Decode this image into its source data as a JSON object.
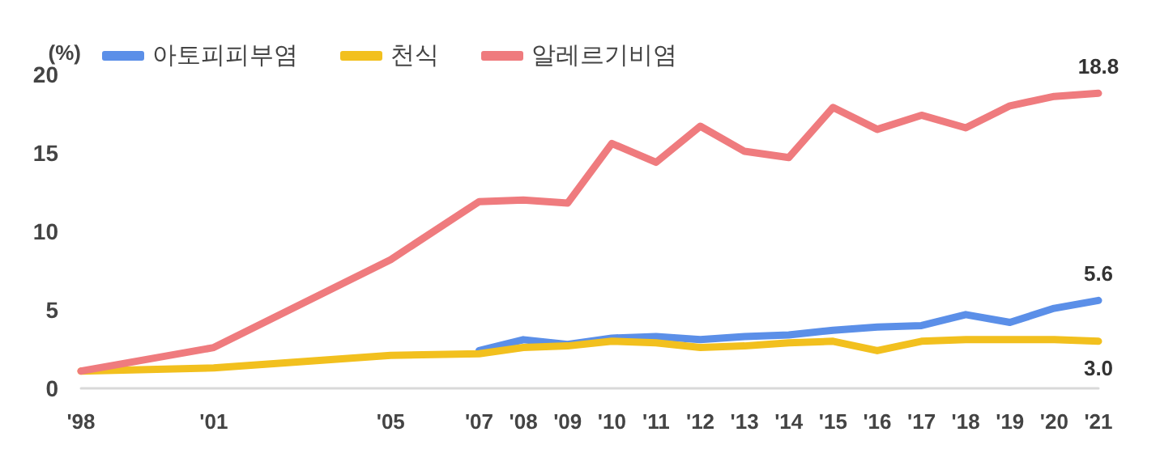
{
  "chart_data": {
    "type": "line",
    "ylabel": "(%)",
    "x": [
      1998,
      2001,
      2005,
      2007,
      2008,
      2009,
      2010,
      2011,
      2012,
      2013,
      2014,
      2015,
      2016,
      2017,
      2018,
      2019,
      2020,
      2021
    ],
    "xlim": [
      1998,
      2021
    ],
    "xticks": [
      {
        "value": 1998,
        "label": "'98"
      },
      {
        "value": 2001,
        "label": "'01"
      },
      {
        "value": 2005,
        "label": "'05"
      },
      {
        "value": 2007,
        "label": "'07"
      },
      {
        "value": 2008,
        "label": "'08"
      },
      {
        "value": 2009,
        "label": "'09"
      },
      {
        "value": 2010,
        "label": "'10"
      },
      {
        "value": 2011,
        "label": "'11"
      },
      {
        "value": 2012,
        "label": "'12"
      },
      {
        "value": 2013,
        "label": "'13"
      },
      {
        "value": 2014,
        "label": "'14"
      },
      {
        "value": 2015,
        "label": "'15"
      },
      {
        "value": 2016,
        "label": "'16"
      },
      {
        "value": 2017,
        "label": "'17"
      },
      {
        "value": 2018,
        "label": "'18"
      },
      {
        "value": 2019,
        "label": "'19"
      },
      {
        "value": 2020,
        "label": "'20"
      },
      {
        "value": 2021,
        "label": "'21"
      }
    ],
    "ylim": [
      0,
      20
    ],
    "yticks": [
      0,
      5,
      10,
      15,
      20
    ],
    "grid": false,
    "legend": "top left",
    "marker": "none",
    "line_style": "solid",
    "series": [
      {
        "name": "아토피피부염",
        "color": "#5b8fe8",
        "values": [
          null,
          null,
          null,
          2.4,
          3.1,
          2.8,
          3.2,
          3.3,
          3.1,
          3.3,
          3.4,
          3.7,
          3.9,
          4.0,
          4.7,
          4.2,
          5.1,
          5.6
        ],
        "value_labels": [
          null,
          null,
          null,
          null,
          null,
          null,
          null,
          null,
          null,
          null,
          null,
          null,
          null,
          null,
          null,
          null,
          null,
          "5.6"
        ]
      },
      {
        "name": "천식",
        "color": "#f2c01e",
        "values": [
          1.1,
          1.3,
          2.1,
          2.2,
          2.6,
          2.7,
          3.0,
          2.9,
          2.6,
          2.7,
          2.9,
          3.0,
          2.4,
          3.0,
          3.1,
          3.1,
          3.1,
          3.0
        ],
        "value_labels": [
          null,
          null,
          null,
          null,
          null,
          null,
          null,
          null,
          null,
          null,
          null,
          null,
          null,
          null,
          null,
          null,
          null,
          "3.0"
        ]
      },
      {
        "name": "알레르기비염",
        "color": "#ef7b7e",
        "values": [
          1.1,
          2.6,
          8.2,
          11.9,
          12.0,
          11.8,
          15.6,
          14.4,
          16.7,
          15.1,
          14.7,
          17.9,
          16.5,
          17.4,
          16.6,
          18.0,
          18.6,
          18.8
        ],
        "value_labels": [
          null,
          null,
          null,
          null,
          null,
          null,
          null,
          null,
          null,
          null,
          null,
          null,
          null,
          null,
          null,
          null,
          null,
          "18.8"
        ]
      }
    ]
  }
}
